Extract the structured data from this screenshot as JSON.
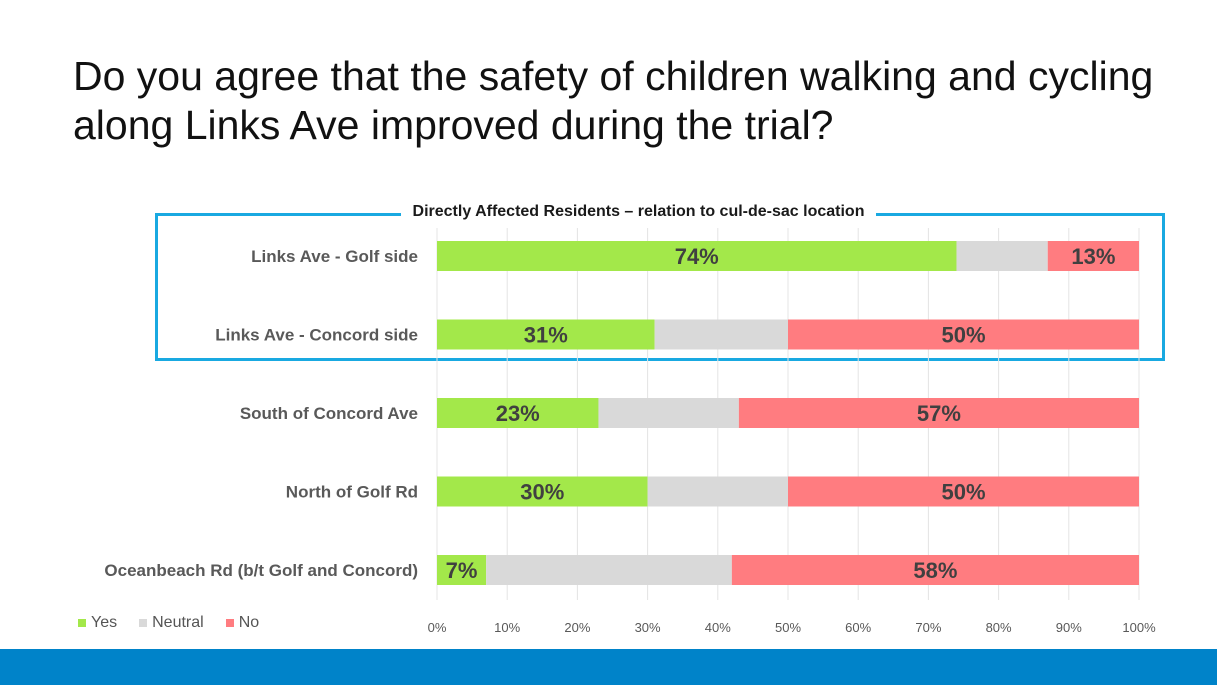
{
  "title": "Do you agree that the safety of children walking and cycling along Links Ave improved during the trial?",
  "group_label": "Directly Affected Residents – relation to cul-de-sac location",
  "colors": {
    "yes": "#a3e84a",
    "neutral": "#d9d9d9",
    "no": "#ff7c80",
    "group_border": "#19a9e1",
    "footer": "#0083c9"
  },
  "chart_data": {
    "type": "bar",
    "orientation": "horizontal",
    "stacked": true,
    "percent": true,
    "categories": [
      "Links Ave - Golf side",
      "Links Ave - Concord side",
      "South of Concord Ave",
      "North of Golf Rd",
      "Oceanbeach Rd (b/t Golf and Concord)"
    ],
    "series": [
      {
        "name": "Yes",
        "values": [
          74,
          31,
          23,
          30,
          7
        ],
        "labels": [
          "74%",
          "31%",
          "23%",
          "30%",
          "7%"
        ]
      },
      {
        "name": "Neutral",
        "values": [
          13,
          19,
          20,
          20,
          35
        ],
        "labels": [
          "",
          "",
          "",
          "",
          ""
        ]
      },
      {
        "name": "No",
        "values": [
          13,
          50,
          57,
          50,
          58
        ],
        "labels": [
          "13%",
          "50%",
          "57%",
          "50%",
          "58%"
        ]
      }
    ],
    "xlim": [
      0,
      100
    ],
    "x_ticks": [
      "0%",
      "10%",
      "20%",
      "30%",
      "40%",
      "50%",
      "60%",
      "70%",
      "80%",
      "90%",
      "100%"
    ],
    "grid": true,
    "legend_position": "bottom-left"
  }
}
